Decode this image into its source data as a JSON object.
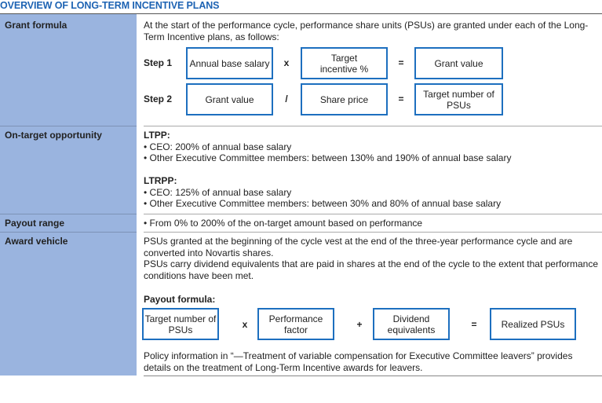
{
  "title": "OVERVIEW OF LONG-TERM INCENTIVE PLANS",
  "rows": {
    "grant": {
      "label": "Grant formula",
      "intro": "At the start of the performance cycle, performance share units (PSUs) are granted under each of the Long-Term Incentive plans, as follows:",
      "step1": {
        "label": "Step 1",
        "a": "Annual base salary",
        "op1": "x",
        "b": "Target incentive %",
        "op2": "=",
        "c": "Grant value"
      },
      "step2": {
        "label": "Step 2",
        "a": "Grant value",
        "op1": "/",
        "b": "Share price",
        "op2": "=",
        "c": "Target number of PSUs"
      }
    },
    "ontarget": {
      "label": "On-target opportunity",
      "ltpp": "LTPP:",
      "ltpp_items": [
        "• CEO: 200% of annual base salary",
        "• Other Executive Committee members: between 130% and 190% of annual base salary"
      ],
      "ltrpp": "LTRPP:",
      "ltrpp_items": [
        "• CEO: 125% of annual base salary",
        "• Other Executive Committee members: between 30% and 80% of annual base salary"
      ]
    },
    "payout": {
      "label": "Payout range",
      "text": "• From 0% to 200% of the on-target amount based on performance"
    },
    "award": {
      "label": "Award vehicle",
      "p1": "PSUs granted at the beginning of the cycle vest at the end of the three-year performance cycle and are converted into Novartis shares.",
      "p2": "PSUs carry dividend equivalents that are paid in shares at the end of the cycle to the extent that performance conditions have been met.",
      "formula_label": "Payout formula:",
      "formula": {
        "a": "Target number of PSUs",
        "op1": "x",
        "b": "Performance factor",
        "op2": "+",
        "c": "Dividend equivalents",
        "op3": "=",
        "d": "Realized PSUs"
      },
      "p3": "Policy information in “—Treatment of variable compensation for Executive Committee leavers” provides details on the treatment of Long-Term Incentive awards for leavers."
    }
  }
}
